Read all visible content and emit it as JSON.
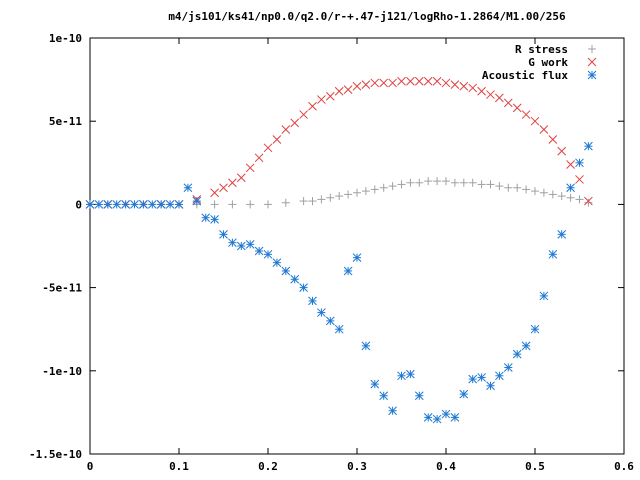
{
  "chart_data": {
    "type": "scatter",
    "title": "m4/js101/ks41/np0.0/q2.0/r-+.47-j121/logRho-1.2864/M1.00/256",
    "xlabel": "",
    "ylabel": "",
    "xlim": [
      0,
      0.6
    ],
    "ylim": [
      -1.5e-10,
      1e-10
    ],
    "x_ticks": [
      {
        "value": 0,
        "label": "0"
      },
      {
        "value": 0.1,
        "label": "0.1"
      },
      {
        "value": 0.2,
        "label": "0.2"
      },
      {
        "value": 0.3,
        "label": "0.3"
      },
      {
        "value": 0.4,
        "label": "0.4"
      },
      {
        "value": 0.5,
        "label": "0.5"
      },
      {
        "value": 0.6,
        "label": "0.6"
      }
    ],
    "y_ticks": [
      {
        "value": 1e-10,
        "label": "1e-10"
      },
      {
        "value": 5e-11,
        "label": "5e-11"
      },
      {
        "value": 0,
        "label": "0"
      },
      {
        "value": -5e-11,
        "label": "-5e-11"
      },
      {
        "value": -1e-10,
        "label": "-1e-10"
      },
      {
        "value": -1.5e-10,
        "label": "-1.5e-10"
      }
    ],
    "grid": false,
    "legend_position": "top-right",
    "series": [
      {
        "name": "R stress",
        "marker": "plus",
        "color": "#a0a0a0",
        "x": [
          0.0,
          0.02,
          0.04,
          0.06,
          0.08,
          0.1,
          0.12,
          0.14,
          0.16,
          0.18,
          0.2,
          0.22,
          0.24,
          0.25,
          0.26,
          0.27,
          0.28,
          0.29,
          0.3,
          0.31,
          0.32,
          0.33,
          0.34,
          0.35,
          0.36,
          0.37,
          0.38,
          0.39,
          0.4,
          0.41,
          0.42,
          0.43,
          0.44,
          0.45,
          0.46,
          0.47,
          0.48,
          0.49,
          0.5,
          0.51,
          0.52,
          0.53,
          0.54,
          0.55,
          0.56
        ],
        "y": [
          0,
          0,
          0,
          0,
          0,
          0,
          0,
          0,
          0,
          0,
          0,
          1e-12,
          2e-12,
          2e-12,
          3e-12,
          4e-12,
          5e-12,
          6e-12,
          7e-12,
          8e-12,
          9e-12,
          1e-11,
          1.1e-11,
          1.2e-11,
          1.3e-11,
          1.3e-11,
          1.4e-11,
          1.4e-11,
          1.4e-11,
          1.3e-11,
          1.3e-11,
          1.3e-11,
          1.2e-11,
          1.2e-11,
          1.1e-11,
          1e-11,
          1e-11,
          9e-12,
          8e-12,
          7e-12,
          6e-12,
          5e-12,
          4e-12,
          3e-12,
          1e-12
        ]
      },
      {
        "name": "G work",
        "marker": "cross",
        "color": "#e04040",
        "x": [
          0.0,
          0.02,
          0.04,
          0.06,
          0.08,
          0.1,
          0.12,
          0.14,
          0.15,
          0.16,
          0.17,
          0.18,
          0.19,
          0.2,
          0.21,
          0.22,
          0.23,
          0.24,
          0.25,
          0.26,
          0.27,
          0.28,
          0.29,
          0.3,
          0.31,
          0.32,
          0.33,
          0.34,
          0.35,
          0.36,
          0.37,
          0.38,
          0.39,
          0.4,
          0.41,
          0.42,
          0.43,
          0.44,
          0.45,
          0.46,
          0.47,
          0.48,
          0.49,
          0.5,
          0.51,
          0.52,
          0.53,
          0.54,
          0.55,
          0.56
        ],
        "y": [
          0,
          0,
          0,
          0,
          0,
          0,
          3e-12,
          7e-12,
          1e-11,
          1.3e-11,
          1.6e-11,
          2.2e-11,
          2.8e-11,
          3.4e-11,
          3.9e-11,
          4.5e-11,
          4.9e-11,
          5.4e-11,
          5.9e-11,
          6.3e-11,
          6.5e-11,
          6.8e-11,
          6.9e-11,
          7.1e-11,
          7.2e-11,
          7.3e-11,
          7.3e-11,
          7.3e-11,
          7.4e-11,
          7.4e-11,
          7.4e-11,
          7.4e-11,
          7.4e-11,
          7.3e-11,
          7.2e-11,
          7.1e-11,
          7e-11,
          6.8e-11,
          6.6e-11,
          6.4e-11,
          6.1e-11,
          5.8e-11,
          5.4e-11,
          5e-11,
          4.5e-11,
          3.9e-11,
          3.2e-11,
          2.4e-11,
          1.5e-11,
          2e-12
        ]
      },
      {
        "name": "Acoustic flux",
        "marker": "asterisk",
        "color": "#1e78d2",
        "x": [
          0.0,
          0.01,
          0.02,
          0.03,
          0.04,
          0.05,
          0.06,
          0.07,
          0.08,
          0.09,
          0.1,
          0.11,
          0.12,
          0.13,
          0.14,
          0.15,
          0.16,
          0.17,
          0.18,
          0.19,
          0.2,
          0.21,
          0.22,
          0.23,
          0.24,
          0.25,
          0.26,
          0.27,
          0.28,
          0.29,
          0.3,
          0.31,
          0.32,
          0.33,
          0.34,
          0.35,
          0.36,
          0.37,
          0.38,
          0.39,
          0.4,
          0.41,
          0.42,
          0.43,
          0.44,
          0.45,
          0.46,
          0.47,
          0.48,
          0.49,
          0.5,
          0.51,
          0.52,
          0.53,
          0.54,
          0.55,
          0.56
        ],
        "y": [
          0,
          0,
          0,
          0,
          0,
          0,
          0,
          0,
          0,
          0,
          0,
          1e-11,
          2e-12,
          -8e-12,
          -9e-12,
          -1.8e-11,
          -2.3e-11,
          -2.5e-11,
          -2.4e-11,
          -2.8e-11,
          -3e-11,
          -3.5e-11,
          -4e-11,
          -4.5e-11,
          -5e-11,
          -5.8e-11,
          -6.5e-11,
          -7e-11,
          -7.5e-11,
          -4e-11,
          -3.2e-11,
          -8.5e-11,
          -1.08e-10,
          -1.15e-10,
          -1.24e-10,
          -1.03e-10,
          -1.02e-10,
          -1.15e-10,
          -1.28e-10,
          -1.29e-10,
          -1.26e-10,
          -1.28e-10,
          -1.14e-10,
          -1.05e-10,
          -1.04e-10,
          -1.09e-10,
          -1.03e-10,
          -9.8e-11,
          -9e-11,
          -8.5e-11,
          -7.5e-11,
          -5.5e-11,
          -3e-11,
          -1.8e-11,
          1e-11,
          2.5e-11,
          3.5e-11
        ]
      }
    ]
  }
}
